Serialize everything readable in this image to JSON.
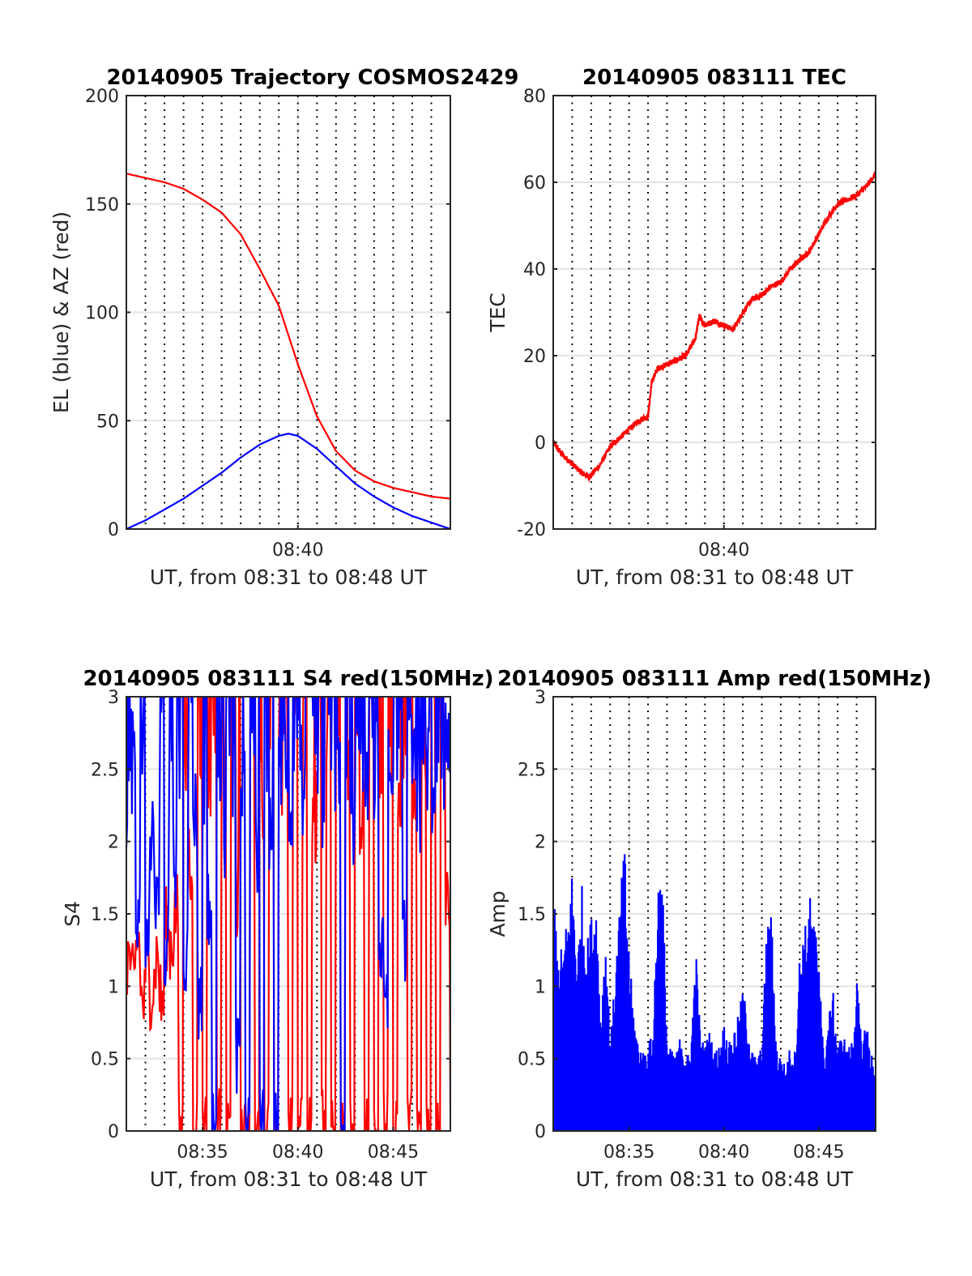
{
  "chart_data": [
    {
      "type": "line",
      "title": "20140905 Trajectory COSMOS2429",
      "xlabel": "UT, from 08:31 to 08:48 UT",
      "ylabel": "EL (blue) & AZ (red)",
      "xlim_minutes": [
        31,
        48
      ],
      "ylim": [
        0,
        200
      ],
      "yticks": [
        0,
        50,
        100,
        150,
        200
      ],
      "ytick_labels": [
        "0",
        "50",
        "100",
        "150",
        "200"
      ],
      "xticks_minutes": [
        40
      ],
      "xtick_labels": [
        "08:40"
      ],
      "grid": true,
      "series": [
        {
          "name": "AZ",
          "color": "#ff0000",
          "x_minutes": [
            31,
            32,
            33,
            34,
            35,
            36,
            37,
            38,
            39,
            40,
            41,
            42,
            43,
            44,
            45,
            46,
            47,
            48
          ],
          "values": [
            164,
            162,
            160,
            157,
            152,
            146,
            136,
            120,
            103,
            76,
            52,
            36,
            27,
            22,
            19,
            17,
            15,
            14
          ]
        },
        {
          "name": "EL",
          "color": "#0000ff",
          "x_minutes": [
            31,
            32,
            33,
            34,
            35,
            36,
            37,
            38,
            39,
            39.5,
            40,
            41,
            42,
            43,
            44,
            45,
            46,
            47,
            48
          ],
          "values": [
            0,
            4,
            9,
            14,
            20,
            26,
            33,
            39,
            43,
            44,
            43,
            37,
            29,
            21,
            15,
            10,
            6,
            3,
            0
          ]
        }
      ]
    },
    {
      "type": "line",
      "title": "20140905 083111 TEC",
      "xlabel": "UT, from 08:31 to 08:48 UT",
      "ylabel": "TEC",
      "xlim_minutes": [
        31,
        48
      ],
      "ylim": [
        -20,
        80
      ],
      "yticks": [
        -20,
        0,
        20,
        40,
        60,
        80
      ],
      "ytick_labels": [
        "-20",
        "0",
        "20",
        "40",
        "60",
        "80"
      ],
      "xticks_minutes": [
        40
      ],
      "xtick_labels": [
        "08:40"
      ],
      "grid": true,
      "series": [
        {
          "name": "TEC",
          "color": "#ff0000",
          "x_minutes": [
            31,
            31.5,
            32,
            32.5,
            32.9,
            33.5,
            34,
            34.5,
            35,
            35.5,
            36,
            36.2,
            36.5,
            37,
            37.5,
            38,
            38.5,
            38.7,
            39,
            39.5,
            40,
            40.5,
            41,
            41.5,
            42,
            42.5,
            43,
            43.5,
            44,
            44.5,
            45,
            45.5,
            46,
            46.5,
            47,
            47.5,
            48
          ],
          "values": [
            0,
            -3,
            -5,
            -7,
            -8,
            -5,
            -1,
            1,
            3,
            5,
            6,
            14,
            17,
            18,
            19,
            20,
            24,
            29,
            27,
            28,
            27,
            26,
            30,
            33,
            34,
            36,
            37,
            40,
            42,
            44,
            48,
            52,
            55,
            56,
            57,
            59,
            62
          ]
        }
      ]
    },
    {
      "type": "line",
      "title": "20140905 083111 S4 red(150MHz)",
      "xlabel": "UT, from 08:31 to 08:48 UT",
      "ylabel": "S4",
      "xlim_minutes": [
        31,
        48
      ],
      "ylim": [
        0,
        3
      ],
      "yticks": [
        0,
        0.5,
        1,
        1.5,
        2,
        2.5,
        3
      ],
      "ytick_labels": [
        "0",
        "0.5",
        "1",
        "1.5",
        "2",
        "2.5",
        "3"
      ],
      "xticks_minutes": [
        35,
        40,
        45
      ],
      "xtick_labels": [
        "08:35",
        "08:40",
        "08:45"
      ],
      "grid": true,
      "series": [
        {
          "name": "red",
          "color": "#ff0000",
          "values": [
            1.2,
            1.0,
            1.3,
            0.9,
            1.1,
            1.0,
            1.2,
            0.9,
            1.4,
            1.3,
            1.5,
            0,
            2.7,
            1.8,
            0,
            2.9,
            0,
            2.2,
            3,
            0,
            2.5,
            0,
            3,
            1.6,
            0,
            0,
            2.8,
            0,
            2.3,
            0,
            3,
            0,
            2.6,
            3,
            0,
            2.8,
            0,
            3,
            0,
            2.1,
            3,
            0,
            2.7,
            0,
            3,
            0,
            2.5,
            0,
            3,
            2.2,
            0,
            3,
            0,
            2.8,
            0,
            3,
            0,
            2.6,
            3,
            0,
            2.2,
            0,
            3,
            0,
            2.7,
            0,
            3,
            1.5,
            0
          ]
        },
        {
          "name": "blue",
          "color": "#0000ff",
          "values": [
            2.2,
            2.6,
            1.5,
            3,
            1.4,
            2.1,
            1.6,
            2.9,
            1.3,
            2.4,
            1.8,
            2.8,
            1.2,
            3,
            2.2,
            0.9,
            2.7,
            1.5,
            0,
            2.6,
            2.0,
            3,
            2.3,
            0.5,
            2.4,
            0,
            2.9,
            1.9,
            0,
            2.8,
            2.1,
            0,
            2.5,
            2.7,
            2.2,
            3,
            2.8,
            2.3,
            3,
            2.6,
            2.9,
            2.2,
            3,
            2.7,
            2.5,
            0,
            3,
            2.1,
            2.8,
            2.9,
            2.4,
            3,
            2.6,
            1.2,
            1.0,
            2.5,
            3,
            2.7,
            1.3,
            3,
            2.8,
            2.2,
            3,
            2.5,
            2.1,
            3,
            2.4,
            2.8,
            2.6
          ]
        }
      ]
    },
    {
      "type": "bar",
      "title": "20140905 083111 Amp red(150MHz)",
      "xlabel": "UT, from 08:31 to 08:48 UT",
      "ylabel": "Amp",
      "xlim_minutes": [
        31,
        48
      ],
      "ylim": [
        0,
        3
      ],
      "yticks": [
        0,
        0.5,
        1,
        1.5,
        2,
        2.5,
        3
      ],
      "ytick_labels": [
        "0",
        "0.5",
        "1",
        "1.5",
        "2",
        "2.5",
        "3"
      ],
      "xticks_minutes": [
        35,
        40,
        45
      ],
      "xtick_labels": [
        "08:35",
        "08:40",
        "08:45"
      ],
      "grid": true,
      "series": [
        {
          "name": "Amp",
          "color": "#0000ff",
          "values": [
            1.75,
            1.2,
            1.3,
            1.5,
            1.85,
            1.2,
            1.7,
            1.3,
            1.5,
            1.6,
            0.8,
            1.4,
            0.6,
            1.1,
            1.6,
            2.0,
            1.2,
            0.8,
            0.6,
            0.55,
            0.6,
            0.7,
            1.8,
            1.75,
            0.6,
            0.55,
            0.55,
            0.7,
            0.5,
            0.6,
            1.3,
            0.65,
            0.6,
            0.7,
            0.55,
            0.6,
            0.75,
            0.6,
            0.7,
            0.8,
            1.0,
            0.75,
            0.55,
            0.5,
            0.6,
            1.45,
            1.5,
            0.6,
            0.5,
            0.45,
            0.6,
            0.55,
            1.3,
            1.4,
            1.65,
            1.45,
            1.35,
            0.5,
            0.8,
            0.95,
            0.6,
            0.7,
            0.55,
            0.65,
            1.05,
            0.6,
            0.8,
            0.55,
            0.4
          ]
        }
      ]
    }
  ]
}
